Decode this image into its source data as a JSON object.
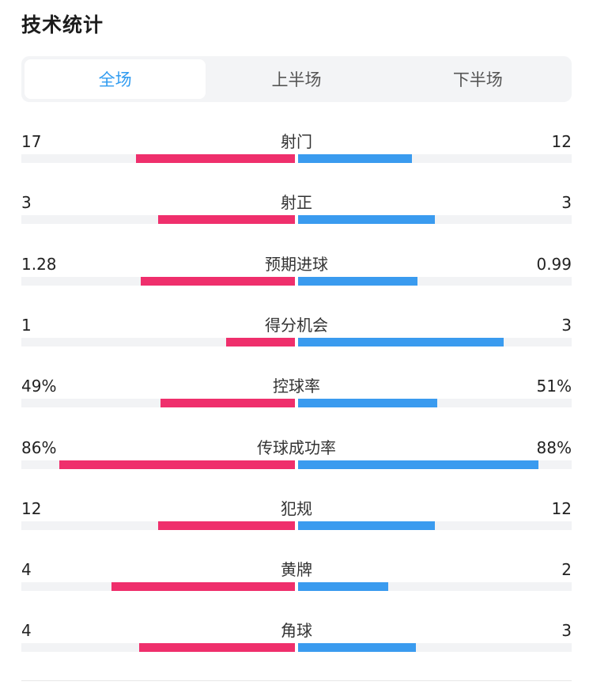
{
  "title": "技术统计",
  "tabs": [
    {
      "label": "全场",
      "active": true
    },
    {
      "label": "上半场",
      "active": false
    },
    {
      "label": "下半场",
      "active": false
    }
  ],
  "colors": {
    "home": "#ef2f6c",
    "away": "#3a9bef",
    "track": "#f2f3f5",
    "accent": "#2f9bf0"
  },
  "stats": [
    {
      "label": "射门",
      "home": "17",
      "away": "12",
      "home_fraction": 0.58,
      "away_fraction": 0.415
    },
    {
      "label": "射正",
      "home": "3",
      "away": "3",
      "home_fraction": 0.5,
      "away_fraction": 0.5
    },
    {
      "label": "预期进球",
      "home": "1.28",
      "away": "0.99",
      "home_fraction": 0.565,
      "away_fraction": 0.435
    },
    {
      "label": "得分机会",
      "home": "1",
      "away": "3",
      "home_fraction": 0.25,
      "away_fraction": 0.75
    },
    {
      "label": "控球率",
      "home": "49%",
      "away": "51%",
      "home_fraction": 0.49,
      "away_fraction": 0.51
    },
    {
      "label": "传球成功率",
      "home": "86%",
      "away": "88%",
      "home_fraction": 0.86,
      "away_fraction": 0.88
    },
    {
      "label": "犯规",
      "home": "12",
      "away": "12",
      "home_fraction": 0.5,
      "away_fraction": 0.5
    },
    {
      "label": "黄牌",
      "home": "4",
      "away": "2",
      "home_fraction": 0.67,
      "away_fraction": 0.33
    },
    {
      "label": "角球",
      "home": "4",
      "away": "3",
      "home_fraction": 0.57,
      "away_fraction": 0.43
    }
  ]
}
